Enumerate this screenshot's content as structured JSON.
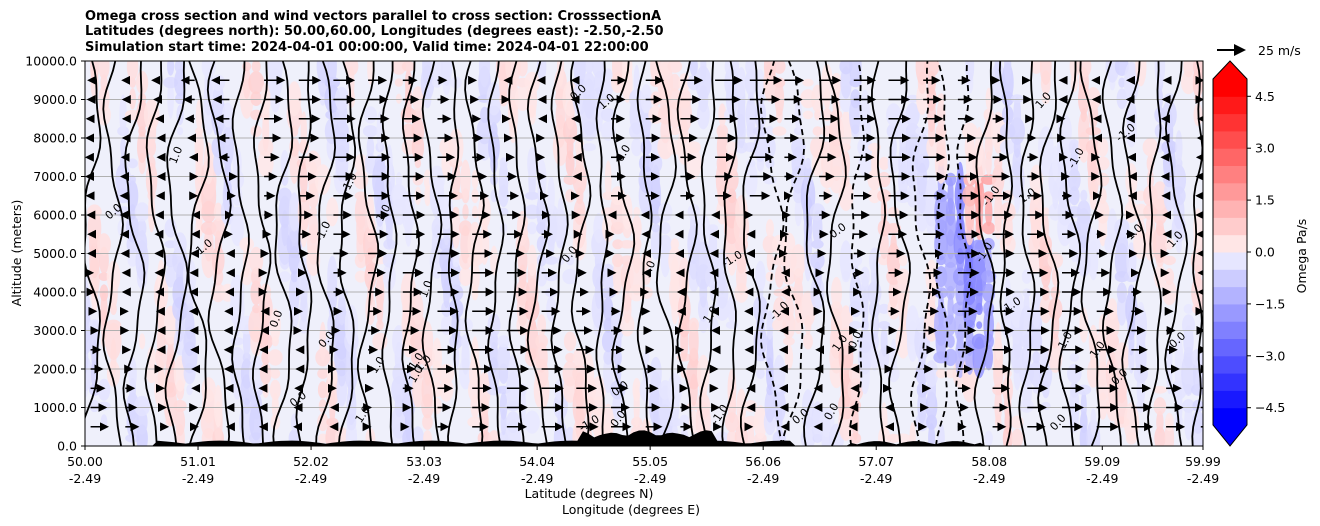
{
  "chart_data": {
    "type": "contourf",
    "title_lines": [
      "Omega cross section and wind vectors parallel to cross section: CrosssectionA",
      "Latitudes (degrees north): 50.00,60.00, Longitudes (degrees east): -2.50,-2.50",
      "Simulation start time: 2024-04-01 00:00:00, Valid time: 2024-04-01 22:00:00"
    ],
    "xlabel_line1": "Latitude (degrees N)",
    "xlabel_line2": "Longitude (degrees E)",
    "ylabel": "Altitude (meters)",
    "xlim": [
      50.0,
      59.99
    ],
    "ylim": [
      0,
      10000
    ],
    "x_ticks": [
      {
        "lat": "50.00",
        "lon": "-2.49",
        "value": 50.0
      },
      {
        "lat": "51.01",
        "lon": "-2.49",
        "value": 51.01
      },
      {
        "lat": "52.02",
        "lon": "-2.49",
        "value": 52.02
      },
      {
        "lat": "53.03",
        "lon": "-2.49",
        "value": 53.03
      },
      {
        "lat": "54.04",
        "lon": "-2.49",
        "value": 54.04
      },
      {
        "lat": "55.05",
        "lon": "-2.49",
        "value": 55.05
      },
      {
        "lat": "56.06",
        "lon": "-2.49",
        "value": 56.06
      },
      {
        "lat": "57.07",
        "lon": "-2.49",
        "value": 57.07
      },
      {
        "lat": "58.08",
        "lon": "-2.49",
        "value": 58.08
      },
      {
        "lat": "59.09",
        "lon": "-2.49",
        "value": 59.09
      },
      {
        "lat": "59.99",
        "lon": "-2.49",
        "value": 59.99
      }
    ],
    "y_ticks": [
      0,
      1000,
      2000,
      3000,
      4000,
      5000,
      6000,
      7000,
      8000,
      9000,
      10000
    ],
    "y_tick_labels": [
      "0.0",
      "1000.0",
      "2000.0",
      "3000.0",
      "4000.0",
      "5000.0",
      "6000.0",
      "7000.0",
      "8000.0",
      "9000.0",
      "10000.0"
    ],
    "grid": "horizontal",
    "colorbar": {
      "label": "Omega Pa/s",
      "range": [
        -5,
        5
      ],
      "levels": [
        -5,
        -4.5,
        -4,
        -3.5,
        -3,
        -2.5,
        -2,
        -1.5,
        -1,
        -0.5,
        0,
        0.5,
        1,
        1.5,
        2,
        2.5,
        3,
        3.5,
        4,
        4.5,
        5
      ],
      "tick_values": [
        -4.5,
        -3.0,
        -1.5,
        0.0,
        1.5,
        3.0,
        4.5
      ],
      "tick_labels": [
        "−4.5",
        "−3.0",
        "−1.5",
        "0.0",
        "1.5",
        "3.0",
        "4.5"
      ],
      "extend": "both"
    },
    "vector_key_label": "25 m/s",
    "contour_levels": [
      -1.0,
      0.0,
      1.0
    ],
    "contour_label_samples": [
      "0.0",
      "1.0",
      "-1.0"
    ],
    "colors": {
      "neg_strong": "#0000ff",
      "neg_light": "#eef0ff",
      "pos_light": "#fff0f0",
      "pos_strong": "#ff0000",
      "terrain": "#000000"
    }
  }
}
